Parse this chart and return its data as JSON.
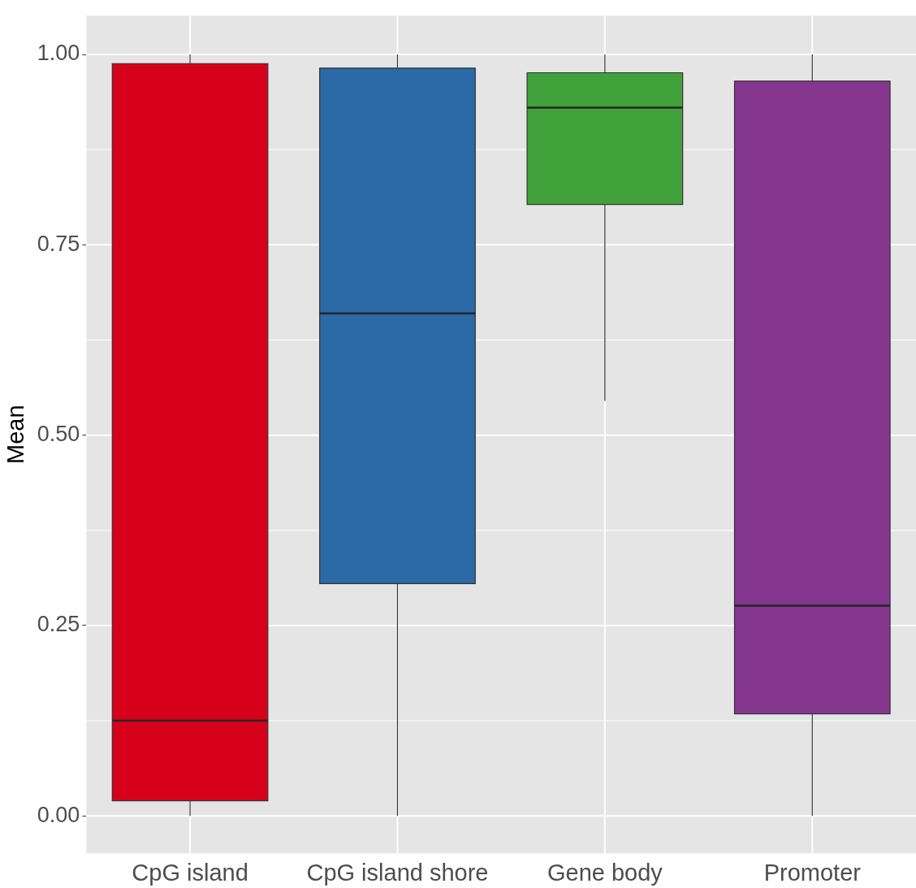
{
  "chart_data": {
    "type": "box",
    "ylabel": "Mean",
    "categories": [
      "CpG island",
      "CpG island shore",
      "Gene body",
      "Promoter"
    ],
    "colors": [
      "#d7001a",
      "#2c69a7",
      "#41a13a",
      "#85368f"
    ],
    "boxes": [
      {
        "low": 0,
        "q1": 0.02,
        "median": 0.125,
        "q3": 0.988,
        "high": 1
      },
      {
        "low": 0,
        "q1": 0.305,
        "median": 0.66,
        "q3": 0.982,
        "high": 1
      },
      {
        "low": 0.545,
        "q1": 0.803,
        "median": 0.93,
        "q3": 0.976,
        "high": 1
      },
      {
        "low": 0,
        "q1": 0.134,
        "median": 0.276,
        "q3": 0.965,
        "high": 1
      }
    ],
    "ylim": [
      -0.049,
      1.051
    ],
    "yticks": [
      {
        "value": 0,
        "label": "0.00"
      },
      {
        "value": 0.25,
        "label": "0.25"
      },
      {
        "value": 0.5,
        "label": "0.50"
      },
      {
        "value": 0.75,
        "label": "0.75"
      },
      {
        "value": 1,
        "label": "1.00"
      }
    ],
    "grid": true
  }
}
